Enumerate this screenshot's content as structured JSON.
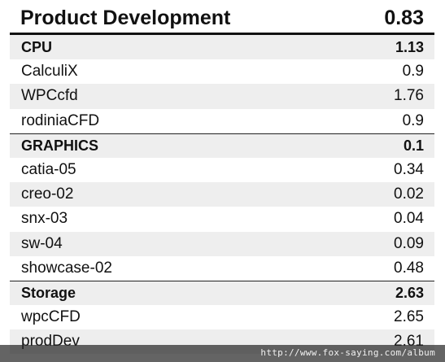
{
  "header": {
    "title": "Product Development",
    "score": "0.83"
  },
  "rows": [
    {
      "label": "CPU",
      "value": "1.13",
      "group": true,
      "shaded": true
    },
    {
      "label": "CalculiX",
      "value": "0.9",
      "group": false,
      "shaded": false
    },
    {
      "label": "WPCcfd",
      "value": "1.76",
      "group": false,
      "shaded": true
    },
    {
      "label": "rodiniaCFD",
      "value": "0.9",
      "group": false,
      "shaded": false
    },
    {
      "label": "GRAPHICS",
      "value": "0.1",
      "group": true,
      "shaded": true
    },
    {
      "label": "catia-05",
      "value": "0.34",
      "group": false,
      "shaded": false
    },
    {
      "label": "creo-02",
      "value": "0.02",
      "group": false,
      "shaded": true
    },
    {
      "label": "snx-03",
      "value": "0.04",
      "group": false,
      "shaded": false
    },
    {
      "label": "sw-04",
      "value": "0.09",
      "group": false,
      "shaded": true
    },
    {
      "label": "showcase-02",
      "value": "0.48",
      "group": false,
      "shaded": false
    },
    {
      "label": "Storage",
      "value": "2.63",
      "group": true,
      "shaded": true
    },
    {
      "label": "wpcCFD",
      "value": "2.65",
      "group": false,
      "shaded": false
    },
    {
      "label": "prodDev",
      "value": "2.61",
      "group": false,
      "shaded": true
    }
  ],
  "watermark": {
    "text": "http://www.fox-saying.com/album"
  }
}
